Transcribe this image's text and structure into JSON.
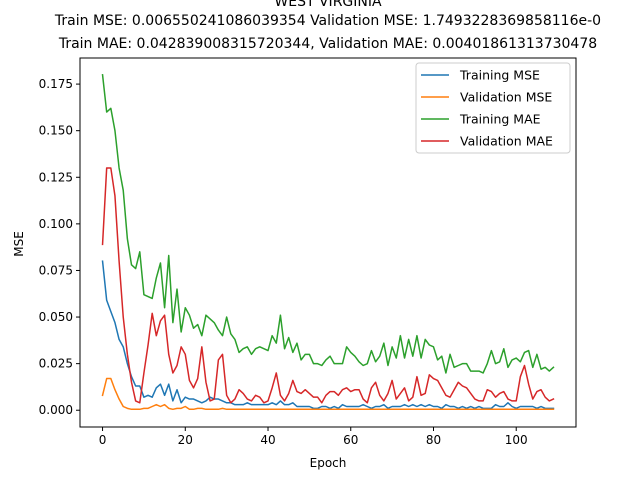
{
  "chart_data": {
    "type": "line",
    "title_lines": [
      "WEST VIRGINIA",
      "Train MSE: 0.006550241086039354 Validation MSE: 1.7493228369858116e-0",
      "Train MAE: 0.042839008315720344, Validation MAE: 0.00401861313730478"
    ],
    "xlabel": "Epoch",
    "ylabel": "MSE",
    "xlim": [
      -5.45,
      114.45
    ],
    "ylim": [
      -0.009,
      0.189
    ],
    "xticks": [
      0,
      20,
      40,
      60,
      80,
      100
    ],
    "xtick_labels": [
      "0",
      "20",
      "40",
      "60",
      "80",
      "100"
    ],
    "yticks": [
      0.0,
      0.025,
      0.05,
      0.075,
      0.1,
      0.125,
      0.15,
      0.175
    ],
    "ytick_labels": [
      "0.000",
      "0.025",
      "0.050",
      "0.075",
      "0.100",
      "0.125",
      "0.150",
      "0.175"
    ],
    "grid": false,
    "legend_position": "upper right",
    "series": [
      {
        "name": "Training MSE",
        "color": "#1f77b4",
        "values": [
          0.08,
          0.059,
          0.053,
          0.047,
          0.038,
          0.034,
          0.025,
          0.018,
          0.013,
          0.013,
          0.007,
          0.008,
          0.007,
          0.012,
          0.014,
          0.008,
          0.014,
          0.005,
          0.011,
          0.004,
          0.007,
          0.006,
          0.006,
          0.005,
          0.004,
          0.005,
          0.007,
          0.006,
          0.006,
          0.005,
          0.004,
          0.004,
          0.003,
          0.003,
          0.003,
          0.004,
          0.003,
          0.003,
          0.003,
          0.003,
          0.003,
          0.004,
          0.003,
          0.005,
          0.003,
          0.003,
          0.004,
          0.002,
          0.002,
          0.002,
          0.002,
          0.001,
          0.001,
          0.002,
          0.002,
          0.001,
          0.002,
          0.001,
          0.003,
          0.002,
          0.002,
          0.002,
          0.002,
          0.003,
          0.002,
          0.001,
          0.002,
          0.002,
          0.003,
          0.001,
          0.002,
          0.002,
          0.002,
          0.003,
          0.002,
          0.003,
          0.002,
          0.003,
          0.002,
          0.003,
          0.002,
          0.002,
          0.001,
          0.003,
          0.002,
          0.002,
          0.001,
          0.002,
          0.001,
          0.002,
          0.001,
          0.002,
          0.001,
          0.001,
          0.001,
          0.003,
          0.002,
          0.002,
          0.004,
          0.002,
          0.001,
          0.002,
          0.002,
          0.002,
          0.002,
          0.001,
          0.002,
          0.001,
          0.001,
          0.001
        ]
      },
      {
        "name": "Validation MSE",
        "color": "#ff7f0e",
        "values": [
          0.008,
          0.017,
          0.017,
          0.011,
          0.006,
          0.002,
          0.001,
          0.0005,
          0.0005,
          0.0005,
          0.001,
          0.001,
          0.002,
          0.003,
          0.002,
          0.003,
          0.001,
          0.0005,
          0.001,
          0.001,
          0.002,
          0.0005,
          0.0005,
          0.001,
          0.001,
          0.0005,
          0.0005,
          0.0005,
          0.0005,
          0.001,
          0.0005,
          0.0005,
          0.0005,
          0.0005,
          0.0005,
          0.0005,
          0.0005,
          0.0005,
          0.0005,
          0.0005,
          0.0005,
          0.0005,
          0.0005,
          0.0005,
          0.0005,
          0.0005,
          0.0005,
          0.0005,
          0.0005,
          0.0005,
          0.0005,
          0.0005,
          0.0005,
          0.0005,
          0.0005,
          0.0005,
          0.0005,
          0.0005,
          0.0005,
          0.0005,
          0.0005,
          0.0005,
          0.0005,
          0.0005,
          0.0005,
          0.0005,
          0.0005,
          0.0005,
          0.0005,
          0.0005,
          0.0005,
          0.0005,
          0.0005,
          0.0005,
          0.0005,
          0.0005,
          0.0005,
          0.0005,
          0.0005,
          0.0005,
          0.0005,
          0.0005,
          0.0005,
          0.0005,
          0.0005,
          0.0005,
          0.0005,
          0.0005,
          0.0005,
          0.0005,
          0.0005,
          0.0005,
          0.0005,
          0.0005,
          0.0005,
          0.0005,
          0.0005,
          0.0005,
          0.0005,
          0.0005,
          0.0005,
          0.0005,
          0.0005,
          0.0005,
          0.0005,
          0.0005,
          0.0005,
          0.0005,
          0.0005,
          0.0005
        ]
      },
      {
        "name": "Training MAE",
        "color": "#2ca02c",
        "values": [
          0.18,
          0.16,
          0.162,
          0.15,
          0.13,
          0.118,
          0.092,
          0.078,
          0.076,
          0.085,
          0.062,
          0.061,
          0.06,
          0.071,
          0.079,
          0.055,
          0.083,
          0.047,
          0.065,
          0.042,
          0.055,
          0.051,
          0.044,
          0.046,
          0.04,
          0.051,
          0.049,
          0.047,
          0.043,
          0.04,
          0.05,
          0.041,
          0.038,
          0.031,
          0.033,
          0.034,
          0.03,
          0.033,
          0.034,
          0.033,
          0.032,
          0.04,
          0.036,
          0.051,
          0.033,
          0.039,
          0.031,
          0.036,
          0.027,
          0.03,
          0.03,
          0.025,
          0.025,
          0.024,
          0.027,
          0.029,
          0.025,
          0.025,
          0.025,
          0.034,
          0.031,
          0.029,
          0.026,
          0.024,
          0.025,
          0.032,
          0.026,
          0.029,
          0.036,
          0.024,
          0.034,
          0.028,
          0.04,
          0.028,
          0.038,
          0.029,
          0.04,
          0.028,
          0.038,
          0.035,
          0.034,
          0.027,
          0.029,
          0.02,
          0.03,
          0.023,
          0.024,
          0.025,
          0.025,
          0.021,
          0.021,
          0.021,
          0.02,
          0.025,
          0.032,
          0.025,
          0.026,
          0.033,
          0.023,
          0.027,
          0.028,
          0.026,
          0.031,
          0.032,
          0.023,
          0.03,
          0.022,
          0.023,
          0.021,
          0.023
        ]
      },
      {
        "name": "Validation MAE",
        "color": "#d62728",
        "values": [
          0.089,
          0.13,
          0.13,
          0.115,
          0.08,
          0.05,
          0.03,
          0.015,
          0.005,
          0.004,
          0.02,
          0.035,
          0.052,
          0.04,
          0.048,
          0.051,
          0.03,
          0.02,
          0.024,
          0.034,
          0.03,
          0.016,
          0.012,
          0.017,
          0.034,
          0.015,
          0.005,
          0.006,
          0.027,
          0.03,
          0.008,
          0.004,
          0.006,
          0.011,
          0.009,
          0.006,
          0.005,
          0.008,
          0.007,
          0.004,
          0.005,
          0.012,
          0.02,
          0.008,
          0.005,
          0.009,
          0.016,
          0.01,
          0.009,
          0.011,
          0.009,
          0.007,
          0.007,
          0.004,
          0.008,
          0.01,
          0.01,
          0.008,
          0.011,
          0.012,
          0.01,
          0.011,
          0.011,
          0.006,
          0.004,
          0.012,
          0.015,
          0.008,
          0.005,
          0.009,
          0.016,
          0.006,
          0.009,
          0.012,
          0.005,
          0.007,
          0.018,
          0.008,
          0.009,
          0.019,
          0.017,
          0.016,
          0.012,
          0.008,
          0.007,
          0.011,
          0.015,
          0.013,
          0.012,
          0.009,
          0.006,
          0.005,
          0.005,
          0.011,
          0.01,
          0.007,
          0.009,
          0.01,
          0.006,
          0.005,
          0.005,
          0.018,
          0.024,
          0.014,
          0.006,
          0.01,
          0.011,
          0.007,
          0.005,
          0.006
        ]
      }
    ]
  }
}
